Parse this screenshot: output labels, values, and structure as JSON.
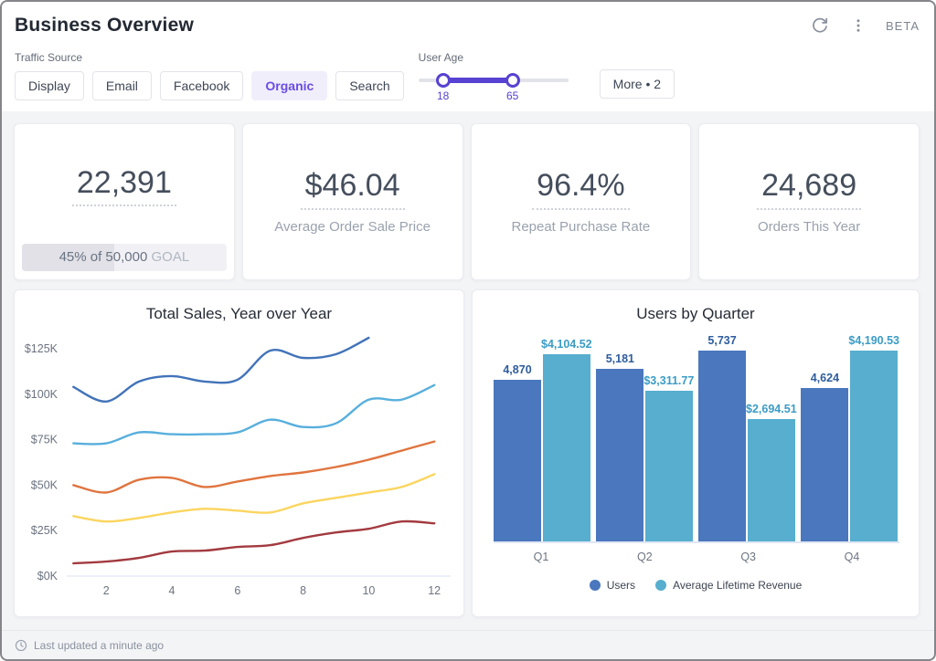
{
  "header": {
    "title": "Business Overview",
    "beta_label": "BETA"
  },
  "filters": {
    "traffic_source_label": "Traffic Source",
    "traffic_sources": [
      {
        "label": "Display",
        "selected": false
      },
      {
        "label": "Email",
        "selected": false
      },
      {
        "label": "Facebook",
        "selected": false
      },
      {
        "label": "Organic",
        "selected": true
      },
      {
        "label": "Search",
        "selected": false
      }
    ],
    "user_age_label": "User Age",
    "user_age_min": "18",
    "user_age_max": "65",
    "more_label": "More • 2"
  },
  "kpis": [
    {
      "value": "22,391",
      "label": "",
      "progress": {
        "percent": 45,
        "text": "45% of 50,000",
        "goal_label": "GOAL"
      }
    },
    {
      "value": "$46.04",
      "label": "Average Order Sale Price"
    },
    {
      "value": "96.4%",
      "label": "Repeat Purchase Rate"
    },
    {
      "value": "24,689",
      "label": "Orders This Year"
    }
  ],
  "chart_data": [
    {
      "type": "line",
      "title": "Total Sales, Year over Year",
      "xlabel": "",
      "ylabel": "",
      "x_start": 1,
      "x_ticks": [
        2,
        4,
        6,
        8,
        10,
        12
      ],
      "y_ticks": [
        "$0K",
        "$25K",
        "$50K",
        "$75K",
        "$100K",
        "$125K"
      ],
      "y_tick_values": [
        0,
        25,
        50,
        75,
        100,
        125
      ],
      "ylim": [
        0,
        135
      ],
      "grid": false,
      "legend_position": "none",
      "series": [
        {
          "color": "#4273b9",
          "values": [
            104,
            96,
            107,
            110,
            107,
            108,
            124,
            120,
            122,
            131
          ]
        },
        {
          "color": "#58afdd",
          "values": [
            73,
            73,
            79,
            78,
            78,
            79,
            86,
            82,
            84,
            97,
            97,
            105
          ]
        },
        {
          "color": "#e0743e",
          "values": [
            50,
            46,
            53,
            54,
            49,
            52,
            55,
            57,
            60,
            64,
            69,
            74
          ]
        },
        {
          "color": "#fbd55f",
          "values": [
            33,
            30,
            32,
            35,
            37,
            36,
            35,
            40,
            43,
            46,
            49,
            56
          ]
        },
        {
          "color": "#a23a3f",
          "values": [
            7,
            8,
            10,
            13.5,
            14,
            16,
            17,
            21,
            24,
            26,
            30,
            29
          ]
        }
      ]
    },
    {
      "type": "bar",
      "title": "Users by Quarter",
      "categories": [
        "Q1",
        "Q2",
        "Q3",
        "Q4"
      ],
      "legend_position": "bottom",
      "series": [
        {
          "name": "Users",
          "color": "#4a77be",
          "label_color": "#2d5c9e",
          "values": [
            4870,
            5181,
            5737,
            4624
          ],
          "value_labels": [
            "4,870",
            "5,181",
            "5,737",
            "4,624"
          ]
        },
        {
          "name": "Average Lifetime Revenue",
          "color": "#57aece",
          "label_color": "#3b9cc6",
          "values": [
            4104.52,
            3311.77,
            2694.51,
            4190.53
          ],
          "value_labels": [
            "$4,104.52",
            "$3,311.77",
            "$2,694.51",
            "$4,190.53"
          ]
        }
      ]
    }
  ],
  "footer": {
    "last_updated": "Last updated a minute ago"
  },
  "colors": {
    "accent_purple": "#5742d2",
    "icon_gray": "#8a919d"
  }
}
